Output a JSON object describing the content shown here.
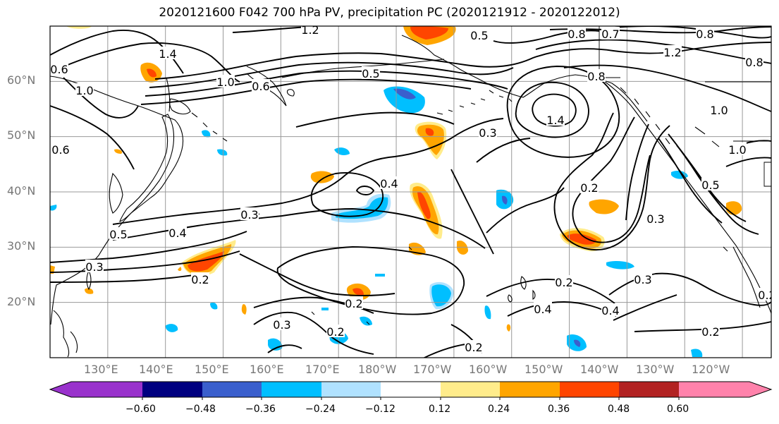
{
  "title": "2020121600 F042 700 hPa PV, precipitation PC (2020121912 - 2020122012)",
  "map": {
    "projection": "cylindrical",
    "domain_lon": [
      120,
      245
    ],
    "domain_lat": [
      10,
      70
    ],
    "lat_labels": [
      "60°N",
      "50°N",
      "40°N",
      "30°N",
      "20°N"
    ],
    "lon_labels": [
      "130°E",
      "140°E",
      "150°E",
      "160°E",
      "170°E",
      "180°W",
      "170°W",
      "160°W",
      "150°W",
      "140°W",
      "130°W",
      "120°W"
    ],
    "gridlines": true
  },
  "contour_labels": [
    "1.2",
    "0.8",
    "0.7",
    "0.5",
    "0.8",
    "1.4",
    "1.2",
    "0.8",
    "1.0",
    "1.0",
    "1.4",
    "0.5",
    "0.8",
    "1.0",
    "0.6",
    "0.3",
    "1.0",
    "0.6",
    "0.5",
    "0.6",
    "0.4",
    "0.2",
    "0.3",
    "0.5",
    "0.4",
    "0.3",
    "0.3",
    "0.2",
    "0.2",
    "0.3",
    "0.2",
    "0.4",
    "0.4",
    "0.3",
    "0.2",
    "0.2",
    "0.2",
    "0.2"
  ],
  "colorbar": {
    "ticks": [
      "−0.60",
      "−0.48",
      "−0.36",
      "−0.24",
      "−0.12",
      "0.12",
      "0.24",
      "0.36",
      "0.48",
      "0.60"
    ],
    "colors": [
      "#9932cc",
      "#000080",
      "#3a5fcd",
      "#00bfff",
      "#b0e2ff",
      "#ffffff",
      "#ffec8b",
      "#ffa500",
      "#ff4500",
      "#b22222",
      "#ff82ab"
    ]
  },
  "chart_data": {
    "type": "heatmap",
    "title": "2020121600 F042 700 hPa PV, precipitation PC (2020121912 - 2020122012)",
    "fields": [
      "700 hPa PV (contours)",
      "precipitation PC (shaded)"
    ],
    "levels": [
      -0.6,
      -0.48,
      -0.36,
      -0.24,
      -0.12,
      0.12,
      0.24,
      0.36,
      0.48,
      0.6
    ],
    "xlim": [
      120,
      245
    ],
    "ylim": [
      10,
      70
    ],
    "precip_features": [
      {
        "lon": 189,
        "lat": 44,
        "value": 0.45
      },
      {
        "lon": 191,
        "lat": 50,
        "value": 0.38
      },
      {
        "lon": 147,
        "lat": 27,
        "value": 0.42
      },
      {
        "lon": 217,
        "lat": 31,
        "value": 0.45
      },
      {
        "lon": 187,
        "lat": 68,
        "value": 0.5
      },
      {
        "lon": 138,
        "lat": 62,
        "value": 0.36
      },
      {
        "lon": 179,
        "lat": 56,
        "value": -0.4
      },
      {
        "lon": 176,
        "lat": 39,
        "value": -0.28
      },
      {
        "lon": 191,
        "lat": 22,
        "value": -0.3
      },
      {
        "lon": 218,
        "lat": 13,
        "value": -0.3
      },
      {
        "lon": 200,
        "lat": 39,
        "value": -0.36
      },
      {
        "lon": 224,
        "lat": 37,
        "value": 0.3
      },
      {
        "lon": 174,
        "lat": 22,
        "value": 0.36
      }
    ]
  }
}
